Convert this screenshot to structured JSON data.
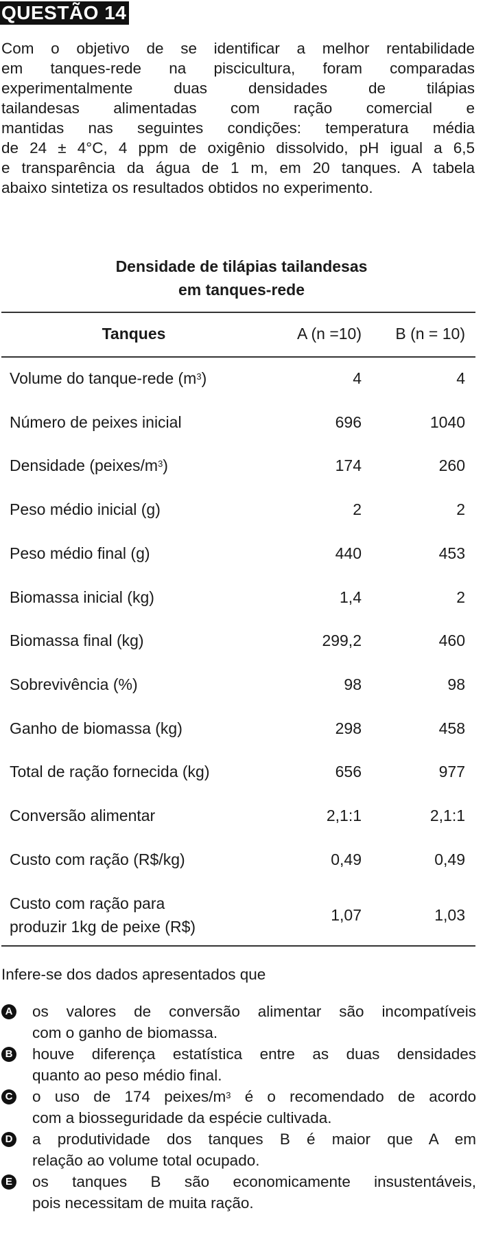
{
  "question": {
    "header": "QUESTÃO 14",
    "statement_lines": [
      "Com o objetivo de se identificar a melhor rentabilidade",
      "em tanques-rede na piscicultura, foram comparadas",
      "experimentalmente duas densidades de tilápias",
      "tailandesas alimentadas com ração comercial e",
      "mantidas nas seguintes condições: temperatura média",
      "de 24 ± 4°C, 4 ppm de oxigênio dissolvido, pH igual a 6,5",
      "e transparência da água de 1 m, em 20 tanques. A tabela",
      "abaixo sintetiza os resultados obtidos no experimento."
    ]
  },
  "table": {
    "title_line1": "Densidade de tilápias tailandesas",
    "title_line2": "em tanques-rede",
    "col_label": "Tanques",
    "col_a": "A (n =10)",
    "col_b": "B (n = 10)",
    "rows": [
      {
        "label": "Volume do tanque-rede (m",
        "sup": "3",
        "label_end": ")",
        "a": "4",
        "b": "4"
      },
      {
        "label": "Número de peixes inicial",
        "sup": "",
        "label_end": "",
        "a": "696",
        "b": "1040"
      },
      {
        "label": "Densidade (peixes/m",
        "sup": "3",
        "label_end": ")",
        "a": "174",
        "b": "260"
      },
      {
        "label": "Peso médio inicial (g)",
        "sup": "",
        "label_end": "",
        "a": "2",
        "b": "2"
      },
      {
        "label": "Peso médio final (g)",
        "sup": "",
        "label_end": "",
        "a": "440",
        "b": "453"
      },
      {
        "label": "Biomassa inicial (kg)",
        "sup": "",
        "label_end": "",
        "a": "1,4",
        "b": "2"
      },
      {
        "label": "Biomassa final (kg)",
        "sup": "",
        "label_end": "",
        "a": "299,2",
        "b": "460"
      },
      {
        "label": "Sobrevivência (%)",
        "sup": "",
        "label_end": "",
        "a": "98",
        "b": "98"
      },
      {
        "label": "Ganho de biomassa (kg)",
        "sup": "",
        "label_end": "",
        "a": "298",
        "b": "458"
      },
      {
        "label": "Total de ração fornecida (kg)",
        "sup": "",
        "label_end": "",
        "a": "656",
        "b": "977"
      },
      {
        "label": "Conversão alimentar",
        "sup": "",
        "label_end": "",
        "a": "2,1:1",
        "b": "2,1:1"
      },
      {
        "label": "Custo com ração (R$/kg)",
        "sup": "",
        "label_end": "",
        "a": "0,49",
        "b": "0,49"
      }
    ],
    "last_row": {
      "label_line1": "Custo com ração para",
      "label_line2": "produzir 1kg de peixe (R$)",
      "a": "1,07",
      "b": "1,03"
    }
  },
  "prompt": "Infere-se dos dados apresentados que",
  "options": [
    {
      "letter": "A",
      "line1": "os valores de conversão alimentar são incompatíveis",
      "line2": "com o ganho de biomassa.",
      "sup": "",
      "line1_end": ""
    },
    {
      "letter": "B",
      "line1": "houve diferença estatística entre as duas densidades",
      "line2": "quanto ao peso médio final.",
      "sup": "",
      "line1_end": ""
    },
    {
      "letter": "C",
      "line1": "o uso de 174 peixes/m",
      "sup": "3",
      "line1_end": " é o recomendado de acordo",
      "line2": "com a biosseguridade da espécie cultivada."
    },
    {
      "letter": "D",
      "line1": "a produtividade dos tanques B é maior que A em",
      "line2": "relação ao volume total ocupado.",
      "sup": "",
      "line1_end": ""
    },
    {
      "letter": "E",
      "line1": "os tanques B são economicamente insustentáveis,",
      "line2": "pois necessitam de muita ração.",
      "sup": "",
      "line1_end": ""
    }
  ]
}
